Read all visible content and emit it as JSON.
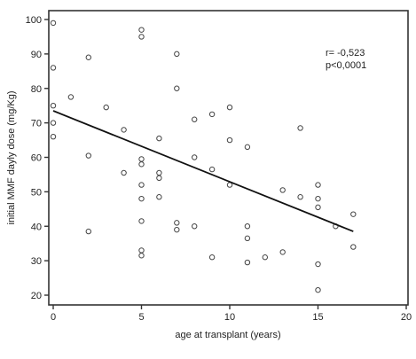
{
  "chart_data": {
    "type": "scatter",
    "title": "",
    "xlabel": "age at transplant (years)",
    "ylabel": "initial MMF dayly dose (mg/Kg)",
    "xlim": [
      0,
      20
    ],
    "ylim": [
      20,
      100
    ],
    "xticks": [
      "0",
      "5",
      "10",
      "15",
      "20"
    ],
    "yticks": [
      "20",
      "30",
      "40",
      "50",
      "60",
      "70",
      "80",
      "90",
      "100"
    ],
    "grid": false,
    "annotations": [
      "r= -0,523",
      "p<0,0001"
    ],
    "series": [
      {
        "points": [
          [
            0,
            99
          ],
          [
            0,
            86
          ],
          [
            0,
            75
          ],
          [
            0,
            70
          ],
          [
            0,
            66
          ],
          [
            1,
            77.5
          ],
          [
            2,
            89
          ],
          [
            2,
            60.5
          ],
          [
            2,
            38.5
          ],
          [
            3,
            74.5
          ],
          [
            4,
            68
          ],
          [
            4,
            55.5
          ],
          [
            5,
            97
          ],
          [
            5,
            95
          ],
          [
            5,
            59.5
          ],
          [
            5,
            58
          ],
          [
            5,
            52
          ],
          [
            5,
            48
          ],
          [
            5,
            41.5
          ],
          [
            5,
            33
          ],
          [
            5,
            31.5
          ],
          [
            6,
            65.5
          ],
          [
            6,
            55.5
          ],
          [
            6,
            54
          ],
          [
            6,
            48.5
          ],
          [
            7,
            90
          ],
          [
            7,
            80
          ],
          [
            7,
            41
          ],
          [
            7,
            39
          ],
          [
            8,
            71
          ],
          [
            8,
            60
          ],
          [
            8,
            40
          ],
          [
            9,
            72.5
          ],
          [
            9,
            56.5
          ],
          [
            9,
            31
          ],
          [
            10,
            74.5
          ],
          [
            10,
            65
          ],
          [
            10,
            52
          ],
          [
            11,
            63
          ],
          [
            11,
            40
          ],
          [
            11,
            36.5
          ],
          [
            11,
            29.5
          ],
          [
            12,
            31
          ],
          [
            13,
            50.5
          ],
          [
            13,
            32.5
          ],
          [
            14,
            48.5
          ],
          [
            14,
            68.5
          ],
          [
            15,
            52
          ],
          [
            15,
            48
          ],
          [
            15,
            45.5
          ],
          [
            15,
            29
          ],
          [
            15,
            21.5
          ],
          [
            16,
            40
          ],
          [
            17,
            43.5
          ],
          [
            17,
            34
          ]
        ]
      }
    ],
    "regression_line": {
      "x": [
        0,
        17
      ],
      "y": [
        73.5,
        38.5
      ]
    }
  }
}
